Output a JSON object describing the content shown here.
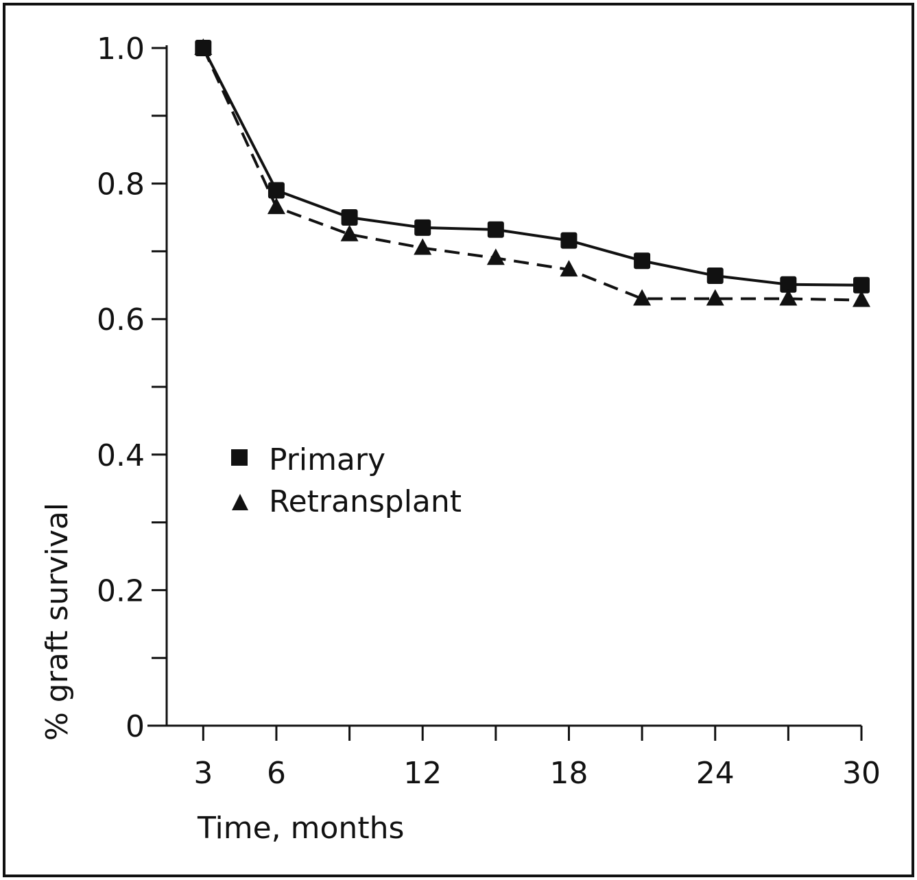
{
  "chart_data": {
    "type": "line",
    "title": "",
    "xlabel": "Time, months",
    "ylabel": "% graft survival",
    "x": [
      3,
      6,
      9,
      12,
      15,
      18,
      21,
      24,
      27,
      30
    ],
    "xlim": [
      1.5,
      30
    ],
    "ylim": [
      0,
      1.0
    ],
    "x_ticks": [
      3,
      6,
      9,
      12,
      15,
      18,
      21,
      24,
      27,
      30
    ],
    "x_tick_labels": [
      "3",
      "6",
      "",
      "12",
      "",
      "18",
      "",
      "24",
      "",
      "30"
    ],
    "y_ticks": [
      0,
      0.1,
      0.2,
      0.3,
      0.4,
      0.5,
      0.6,
      0.7,
      0.8,
      0.9,
      1.0
    ],
    "y_tick_labels": [
      "0",
      "",
      "0.2",
      "",
      "0.4",
      "",
      "0.6",
      "",
      "0.8",
      "",
      "1.0"
    ],
    "grid": false,
    "legend_position": "middle-left",
    "series": [
      {
        "name": "Primary",
        "marker": "square",
        "line_style": "solid",
        "color": "#111111",
        "values": [
          1.0,
          0.79,
          0.75,
          0.735,
          0.732,
          0.716,
          0.686,
          0.664,
          0.651,
          0.65
        ]
      },
      {
        "name": "Retransplant",
        "marker": "triangle",
        "line_style": "dashed",
        "color": "#111111",
        "values": [
          1.0,
          0.765,
          0.725,
          0.705,
          0.69,
          0.673,
          0.63,
          0.63,
          0.63,
          0.628
        ]
      }
    ]
  }
}
